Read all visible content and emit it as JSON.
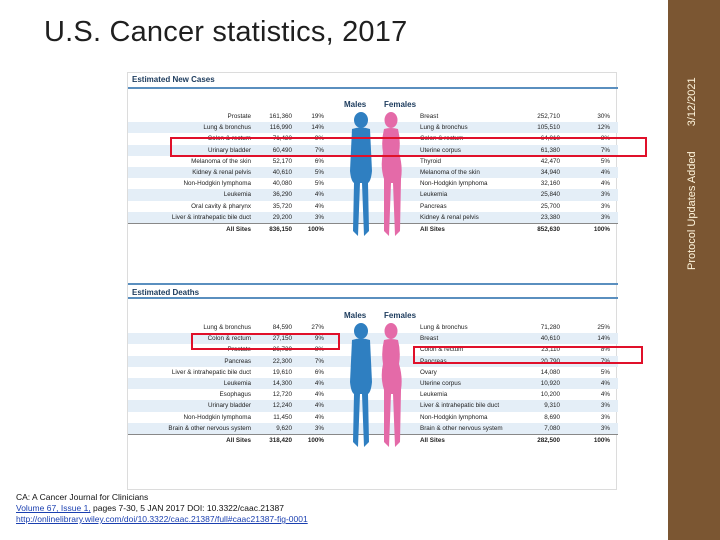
{
  "slide": {
    "title": "U.S. Cancer statistics, 2017",
    "sidebar_label": "Protocol Updates Added",
    "sidebar_date": "3/12/2021"
  },
  "new_cases": {
    "heading": "Estimated New Cases",
    "males_label": "Males",
    "females_label": "Females",
    "males": [
      {
        "site": "Prostate",
        "count": "161,360",
        "pct": "19%"
      },
      {
        "site": "Lung & bronchus",
        "count": "116,990",
        "pct": "14%"
      },
      {
        "site": "Colon & rectum",
        "count": "71,420",
        "pct": "9%"
      },
      {
        "site": "Urinary bladder",
        "count": "60,490",
        "pct": "7%"
      },
      {
        "site": "Melanoma of the skin",
        "count": "52,170",
        "pct": "6%"
      },
      {
        "site": "Kidney & renal pelvis",
        "count": "40,610",
        "pct": "5%"
      },
      {
        "site": "Non-Hodgkin lymphoma",
        "count": "40,080",
        "pct": "5%"
      },
      {
        "site": "Leukemia",
        "count": "36,290",
        "pct": "4%"
      },
      {
        "site": "Oral cavity & pharynx",
        "count": "35,720",
        "pct": "4%"
      },
      {
        "site": "Liver & intrahepatic bile duct",
        "count": "29,200",
        "pct": "3%"
      }
    ],
    "males_total": {
      "site": "All Sites",
      "count": "836,150",
      "pct": "100%"
    },
    "females": [
      {
        "site": "Breast",
        "count": "252,710",
        "pct": "30%"
      },
      {
        "site": "Lung & bronchus",
        "count": "105,510",
        "pct": "12%"
      },
      {
        "site": "Colon & rectum",
        "count": "64,010",
        "pct": "8%"
      },
      {
        "site": "Uterine corpus",
        "count": "61,380",
        "pct": "7%"
      },
      {
        "site": "Thyroid",
        "count": "42,470",
        "pct": "5%"
      },
      {
        "site": "Melanoma of the skin",
        "count": "34,940",
        "pct": "4%"
      },
      {
        "site": "Non-Hodgkin lymphoma",
        "count": "32,160",
        "pct": "4%"
      },
      {
        "site": "Leukemia",
        "count": "25,840",
        "pct": "3%"
      },
      {
        "site": "Pancreas",
        "count": "25,700",
        "pct": "3%"
      },
      {
        "site": "Kidney & renal pelvis",
        "count": "23,380",
        "pct": "3%"
      }
    ],
    "females_total": {
      "site": "All Sites",
      "count": "852,630",
      "pct": "100%"
    }
  },
  "deaths": {
    "heading": "Estimated Deaths",
    "males_label": "Males",
    "females_label": "Females",
    "males": [
      {
        "site": "Lung & bronchus",
        "count": "84,590",
        "pct": "27%"
      },
      {
        "site": "Colon & rectum",
        "count": "27,150",
        "pct": "9%"
      },
      {
        "site": "Prostate",
        "count": "26,730",
        "pct": "8%"
      },
      {
        "site": "Pancreas",
        "count": "22,300",
        "pct": "7%"
      },
      {
        "site": "Liver & intrahepatic bile duct",
        "count": "19,610",
        "pct": "6%"
      },
      {
        "site": "Leukemia",
        "count": "14,300",
        "pct": "4%"
      },
      {
        "site": "Esophagus",
        "count": "12,720",
        "pct": "4%"
      },
      {
        "site": "Urinary bladder",
        "count": "12,240",
        "pct": "4%"
      },
      {
        "site": "Non-Hodgkin lymphoma",
        "count": "11,450",
        "pct": "4%"
      },
      {
        "site": "Brain & other nervous system",
        "count": "9,620",
        "pct": "3%"
      }
    ],
    "males_total": {
      "site": "All Sites",
      "count": "318,420",
      "pct": "100%"
    },
    "females": [
      {
        "site": "Lung & bronchus",
        "count": "71,280",
        "pct": "25%"
      },
      {
        "site": "Breast",
        "count": "40,610",
        "pct": "14%"
      },
      {
        "site": "Colon & rectum",
        "count": "23,110",
        "pct": "8%"
      },
      {
        "site": "Pancreas",
        "count": "20,790",
        "pct": "7%"
      },
      {
        "site": "Ovary",
        "count": "14,080",
        "pct": "5%"
      },
      {
        "site": "Uterine corpus",
        "count": "10,920",
        "pct": "4%"
      },
      {
        "site": "Leukemia",
        "count": "10,200",
        "pct": "4%"
      },
      {
        "site": "Liver & intrahepatic bile duct",
        "count": "9,310",
        "pct": "3%"
      },
      {
        "site": "Non-Hodgkin lymphoma",
        "count": "8,690",
        "pct": "3%"
      },
      {
        "site": "Brain & other nervous system",
        "count": "7,080",
        "pct": "3%"
      }
    ],
    "females_total": {
      "site": "All Sites",
      "count": "282,500",
      "pct": "100%"
    }
  },
  "citation": {
    "line1": "CA: A Cancer Journal for Clinicians",
    "vol_link": "Volume 67, Issue 1,",
    "line2_rest": " pages 7-30, 5 JAN 2017 DOI: 10.3322/caac.21387",
    "url": "http://onlinelibrary.wiley.com/doi/10.3322/caac.21387/full#caac21387-fig-0001"
  },
  "colors": {
    "male_figure": "#2f7fc1",
    "female_figure": "#e46aa8",
    "highlight": "#e0102a",
    "sidebar": "#7b5632"
  }
}
